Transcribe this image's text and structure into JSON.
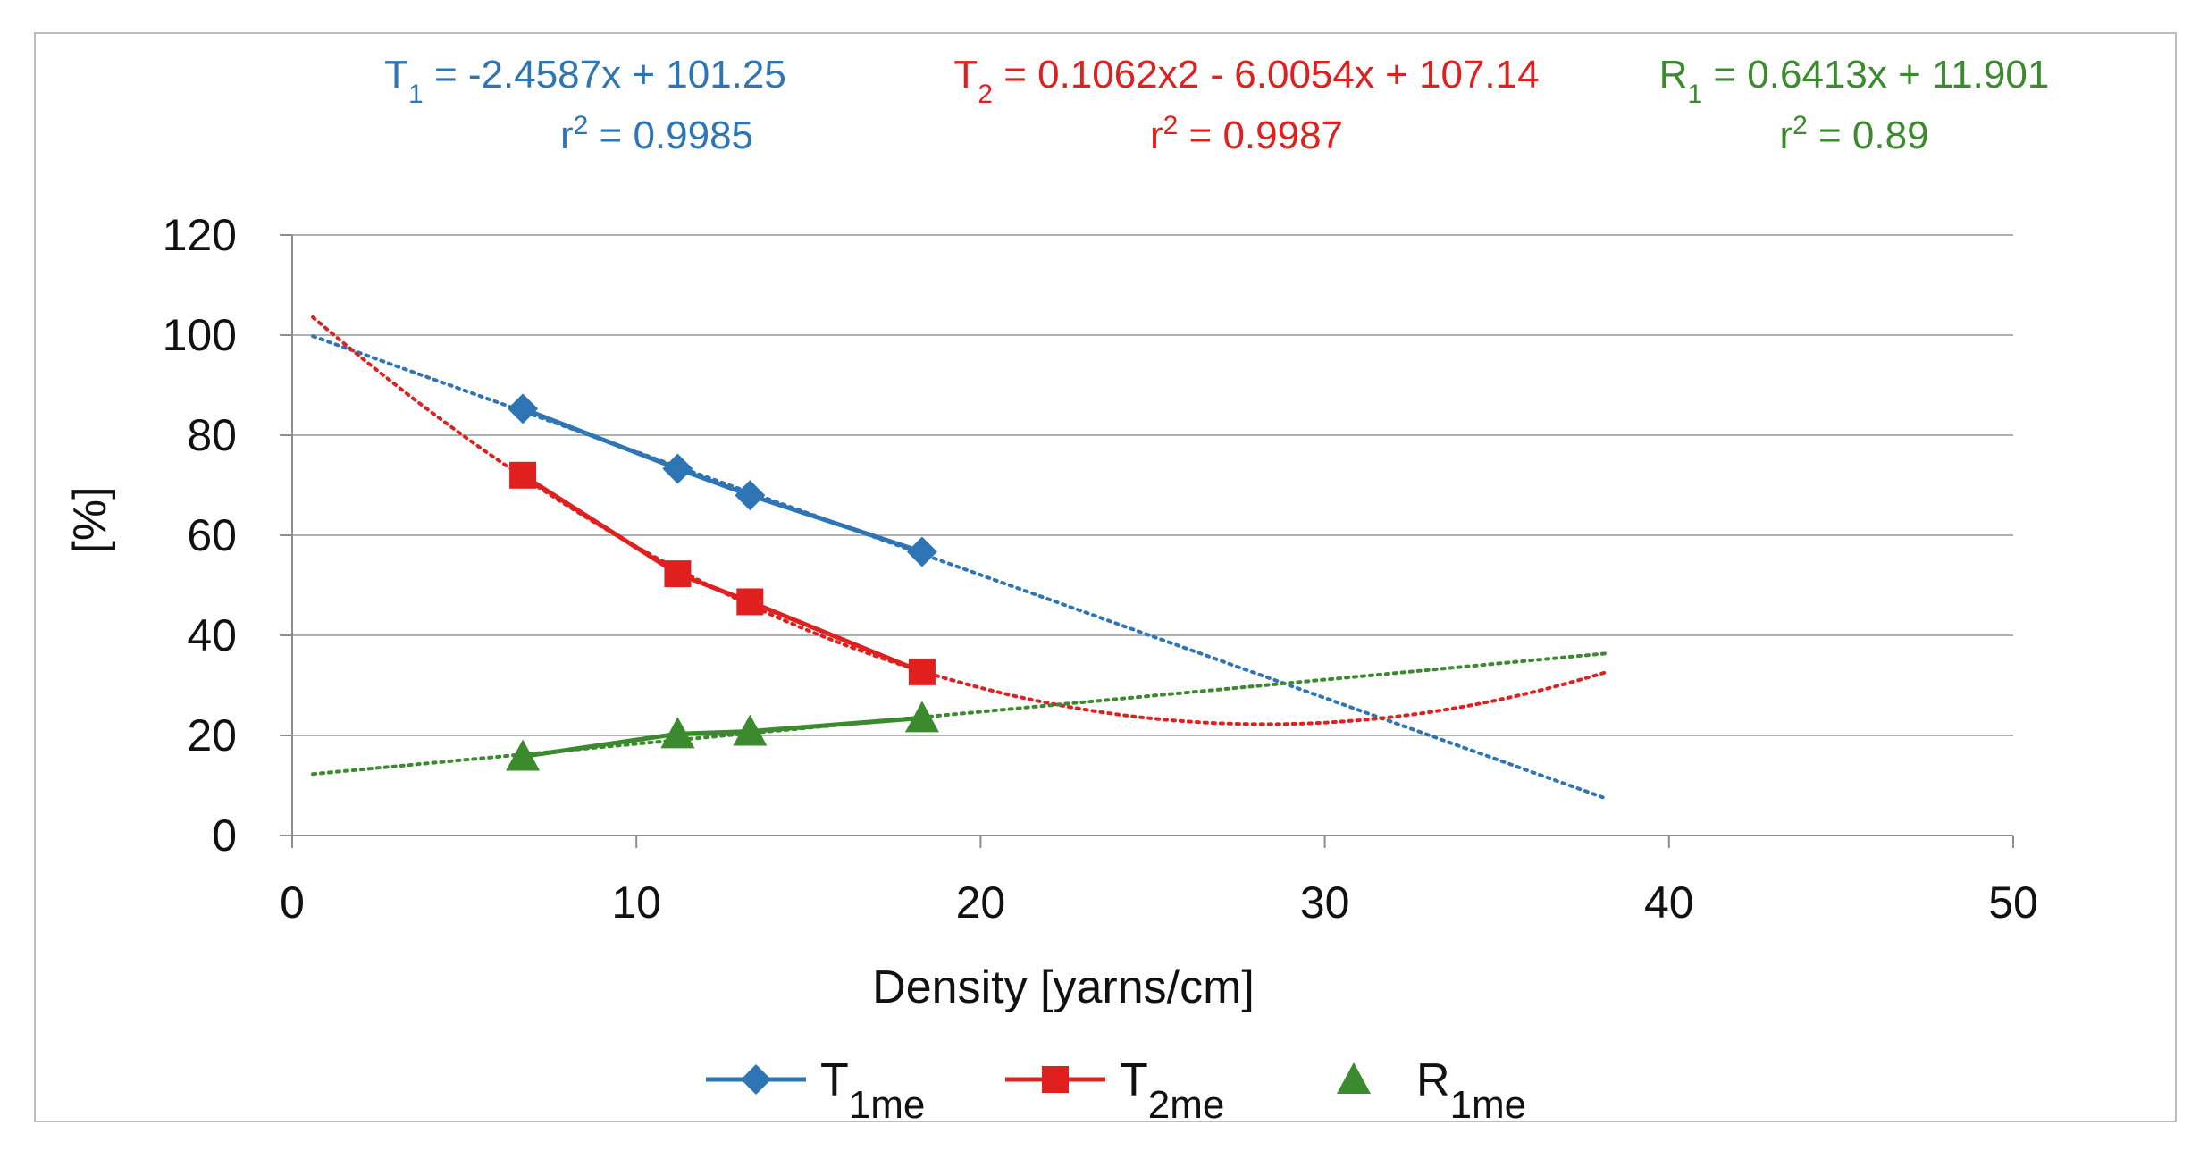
{
  "chart_data": {
    "type": "line",
    "xlabel": "Density [yarns/cm]",
    "ylabel": "[%]",
    "xlim": [
      0,
      50
    ],
    "ylim": [
      0,
      120
    ],
    "xticks": [
      0,
      10,
      20,
      30,
      40,
      50
    ],
    "yticks": [
      0,
      20,
      40,
      60,
      80,
      100,
      120
    ],
    "grid": "horizontal",
    "legend_position": "bottom",
    "series": [
      {
        "key": "t1",
        "legend_base": "T",
        "legend_sub": "1me",
        "marker": "diamond",
        "color": "#2e75b6",
        "x": [
          6.7,
          11.2,
          13.3,
          18.3
        ],
        "y": [
          85.3,
          73.3,
          68.0,
          56.7
        ]
      },
      {
        "key": "t2",
        "legend_base": "T",
        "legend_sub": "2me",
        "marker": "square",
        "color": "#e0201f",
        "x": [
          6.7,
          11.2,
          13.3,
          18.3
        ],
        "y": [
          72.0,
          52.3,
          46.7,
          32.7
        ]
      },
      {
        "key": "r1",
        "legend_base": "R",
        "legend_sub": "1me",
        "marker": "triangle",
        "color": "#3b8a2e",
        "x": [
          6.7,
          11.2,
          13.3,
          18.3
        ],
        "y": [
          15.8,
          20.3,
          20.8,
          23.5
        ]
      }
    ],
    "trendlines": [
      {
        "series": "t1",
        "kind": "linear",
        "coef": [
          -2.4587,
          101.25
        ],
        "x_range": [
          0.6,
          38.2
        ],
        "eq_base": "T",
        "eq_sub": "1",
        "eq_rhs": " = -2.4587x + 101.25",
        "r2_base": "r",
        "r2_sup": "2",
        "r2_rhs": " = 0.9985"
      },
      {
        "series": "t2",
        "kind": "quadratic",
        "coef": [
          0.1062,
          -6.0054,
          107.14
        ],
        "x_range": [
          0.6,
          38.2
        ],
        "eq_base": "T",
        "eq_sub": "2",
        "eq_rhs": " = 0.1062x2 - 6.0054x + 107.14",
        "r2_base": "r",
        "r2_sup": "2",
        "r2_rhs": " = 0.9987"
      },
      {
        "series": "r1",
        "kind": "linear",
        "coef": [
          0.6413,
          11.901
        ],
        "x_range": [
          0.6,
          38.2
        ],
        "eq_base": "R",
        "eq_sub": "1",
        "eq_rhs": " = 0.6413x + 11.901",
        "r2_base": "r",
        "r2_sup": "2",
        "r2_rhs": " = 0.89"
      }
    ]
  }
}
